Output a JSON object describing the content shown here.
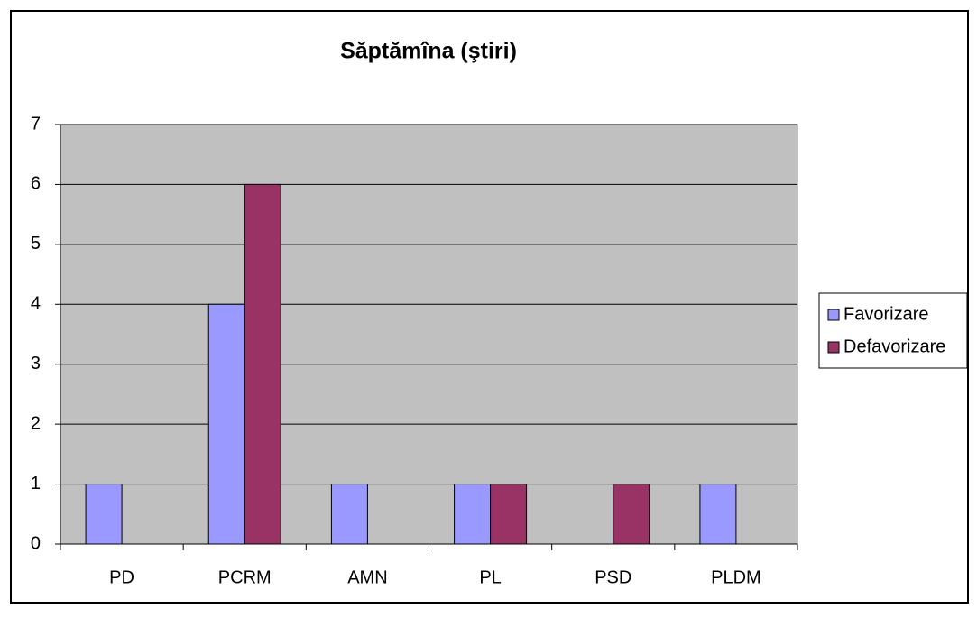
{
  "chart_data": {
    "type": "bar",
    "title": "Săptămîna (ştiri)",
    "categories": [
      "PD",
      "PCRM",
      "AMN",
      "PL",
      "PSD",
      "PLDM"
    ],
    "series": [
      {
        "name": "Favorizare",
        "color": "#9999ff",
        "values": [
          1,
          4,
          1,
          1,
          0,
          1
        ]
      },
      {
        "name": "Defavorizare",
        "color": "#993366",
        "values": [
          0,
          6,
          0,
          1,
          1,
          0
        ]
      }
    ],
    "ylim": [
      0,
      7
    ],
    "yticks": [
      0,
      1,
      2,
      3,
      4,
      5,
      6,
      7
    ],
    "grid": true,
    "legend": "right"
  }
}
